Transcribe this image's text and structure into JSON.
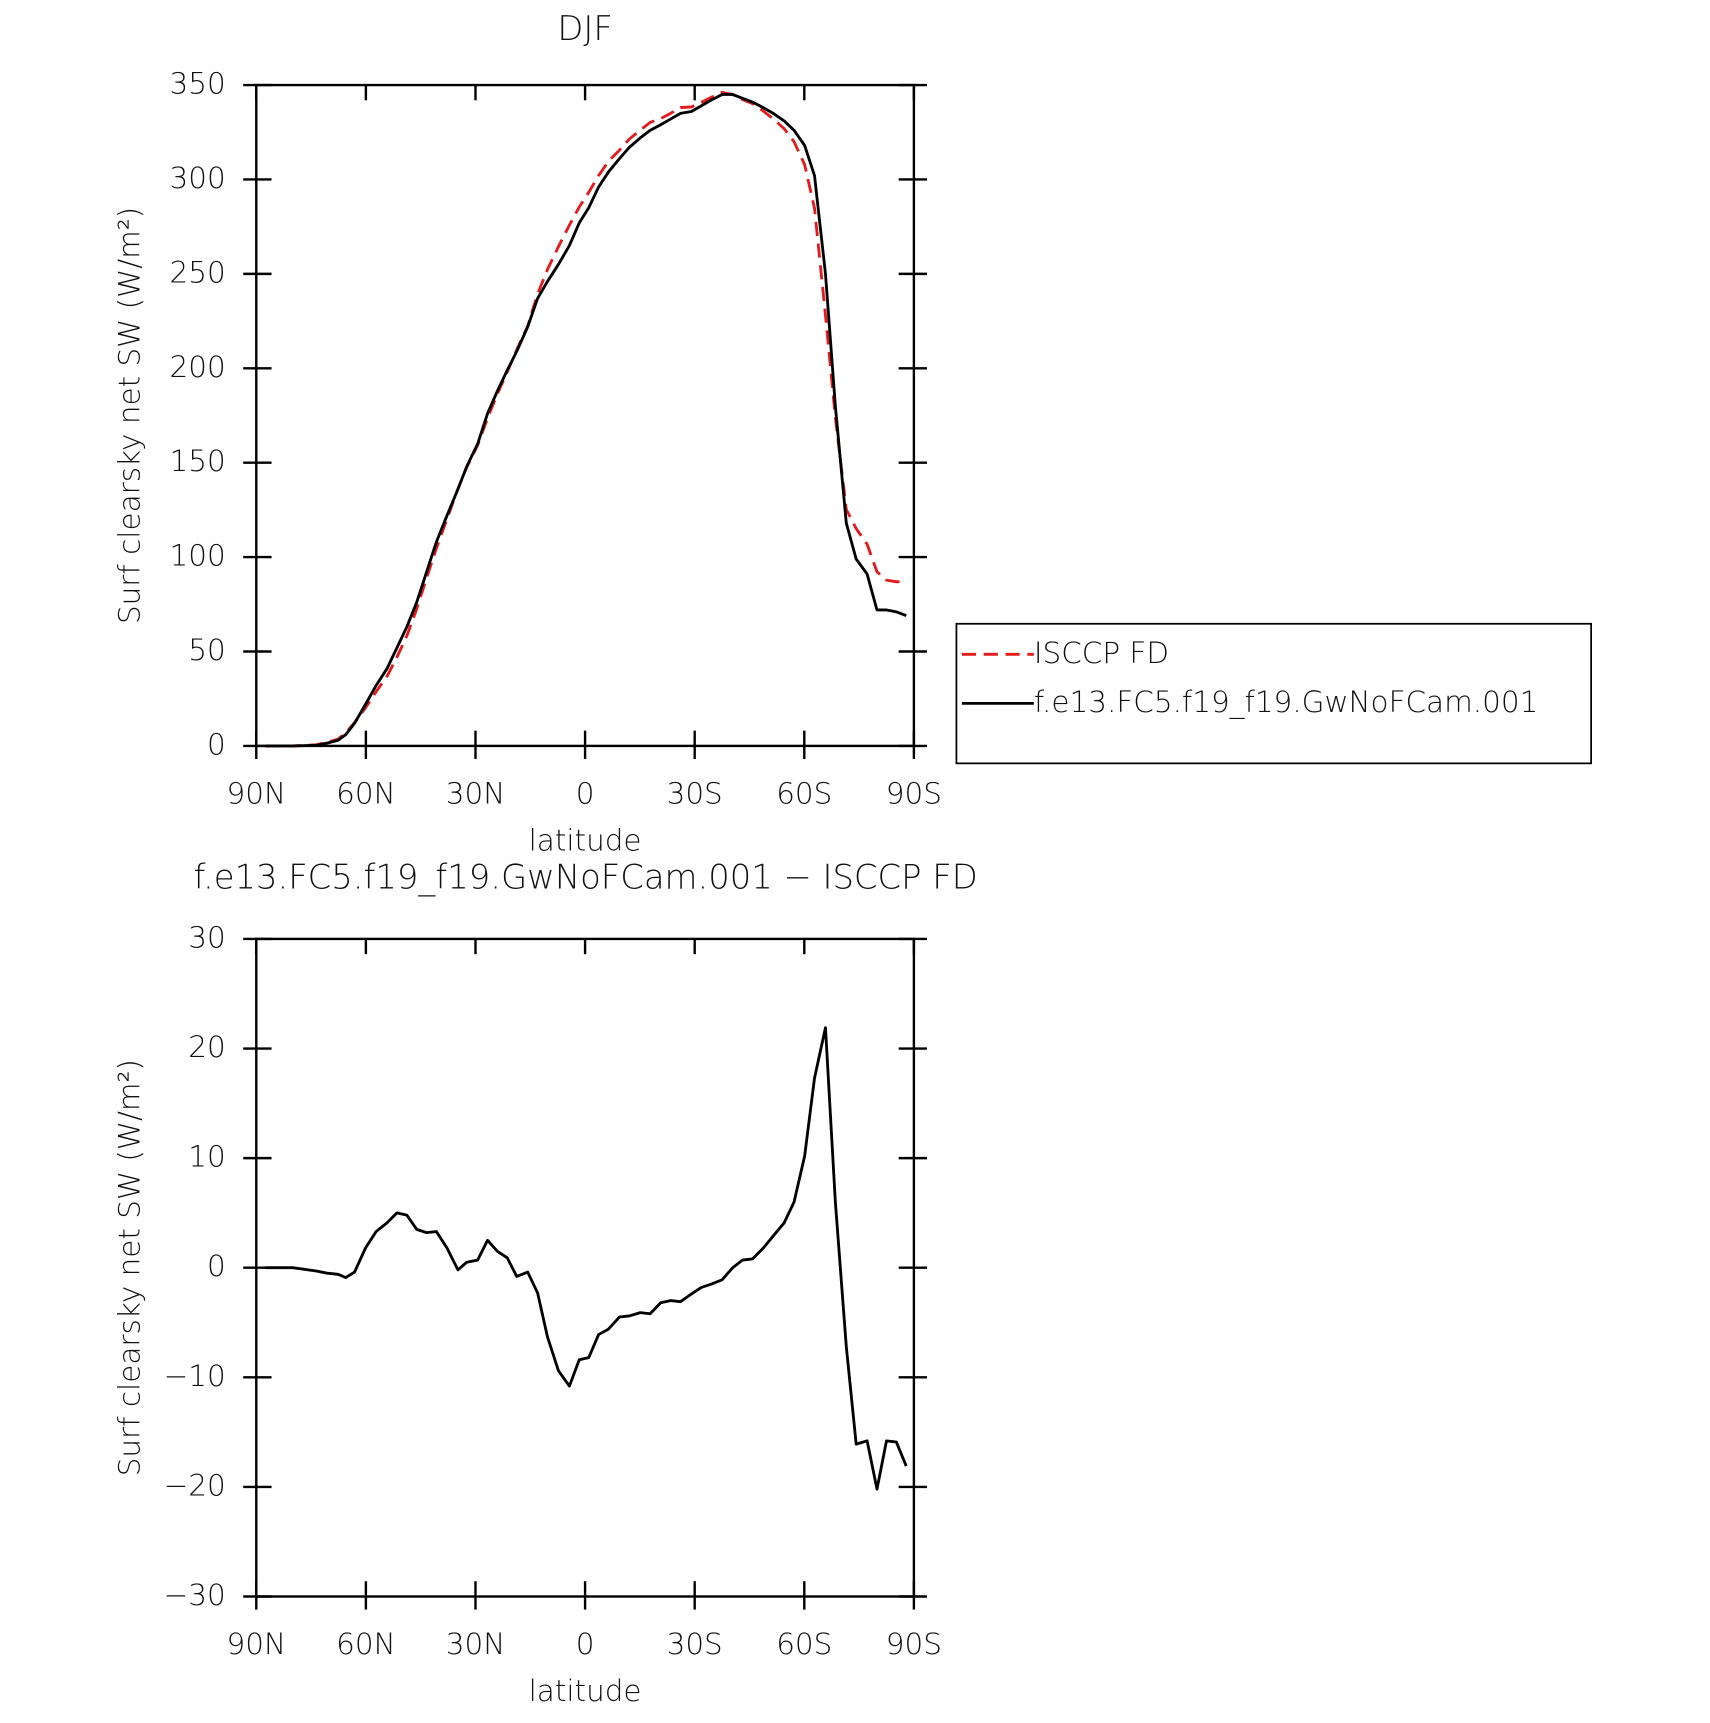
{
  "chart_data": [
    {
      "type": "line",
      "title": "DJF",
      "xlabel": "latitude",
      "ylabel": "Surf clearsky net SW (W/m²)",
      "x": [
        87.6,
        80,
        73.6,
        70.6,
        67.6,
        65.5,
        63.1,
        60.1,
        57.2,
        54.2,
        51.5,
        48.8,
        46.1,
        43.4,
        40.7,
        37.8,
        34.8,
        32.4,
        29.4,
        26.7,
        24,
        21.3,
        18.7,
        15.7,
        13,
        10.3,
        7.3,
        4.3,
        1.6,
        -1,
        -3.7,
        -6.4,
        -9.4,
        -12.1,
        -15.1,
        -17.8,
        -20.7,
        -23.4,
        -26.1,
        -29.1,
        -31.8,
        -34.5,
        -37.5,
        -40.4,
        -43.1,
        -45.8,
        -48.8,
        -51.5,
        -54.5,
        -57.2,
        -60.1,
        -62.8,
        -65.8,
        -68.5,
        -71.5,
        -74.2,
        -77.2,
        -79.9,
        -82.5,
        -85.2,
        -87.9
      ],
      "series": [
        {
          "name": "ISCCP FD",
          "color": "#e41a1c",
          "style": "dashed",
          "values": [
            0,
            0,
            0.6,
            2,
            3.6,
            6.9,
            12.4,
            20.2,
            28.7,
            36.9,
            47,
            58.2,
            72.5,
            88.8,
            104.7,
            120.2,
            136.2,
            147.5,
            159.3,
            173.5,
            186.5,
            198.1,
            209.8,
            222.4,
            239.3,
            252.3,
            264.4,
            275.8,
            285.4,
            293.2,
            302.1,
            309.6,
            315.5,
            321.4,
            326.1,
            330.2,
            332.2,
            335,
            338.1,
            338.4,
            340.8,
            343.5,
            346.1,
            345,
            342.3,
            340.2,
            336.2,
            332.1,
            326.9,
            320,
            307.8,
            284.7,
            228.1,
            174,
            125.2,
            115.1,
            106.8,
            92.2,
            87.8,
            86.9,
            87.1
          ]
        },
        {
          "name": "f.e13.FC5.f19_f19.GwNoFCam.001",
          "color": "#000000",
          "style": "solid",
          "values": [
            0,
            0,
            0.3,
            1.5,
            3,
            6,
            12,
            22,
            32,
            41,
            52,
            63,
            76,
            92,
            108,
            122,
            136,
            148,
            160,
            176,
            188,
            199,
            209,
            222,
            237,
            246,
            255,
            265,
            277,
            285,
            296,
            304,
            311,
            317,
            322,
            326,
            329,
            332,
            335,
            336,
            339,
            342,
            345,
            345,
            343,
            341,
            338,
            335,
            331,
            326,
            318,
            302,
            250,
            180,
            118,
            99,
            91,
            72,
            72,
            71,
            69
          ]
        }
      ],
      "xlim": [
        90,
        -90
      ],
      "xticks": [
        {
          "value": 90,
          "label": "90N"
        },
        {
          "value": 60,
          "label": "60N"
        },
        {
          "value": 30,
          "label": "30N"
        },
        0,
        {
          "value": -30,
          "label": "30S"
        },
        {
          "value": -60,
          "label": "60S"
        },
        {
          "value": -90,
          "label": "90S"
        }
      ],
      "ylim": [
        0,
        350
      ],
      "yticks": [
        0,
        50,
        100,
        150,
        200,
        250,
        300,
        350
      ],
      "legend": "right"
    },
    {
      "type": "line",
      "title": "f.e13.FC5.f19_f19.GwNoFCam.001 − ISCCP FD",
      "xlabel": "latitude",
      "ylabel": "Surf clearsky net SW (W/m²)",
      "x": [
        87.6,
        80,
        73.6,
        70.6,
        67.6,
        65.5,
        63.1,
        60.1,
        57.2,
        54.2,
        51.5,
        48.8,
        46.1,
        43.4,
        40.7,
        37.8,
        34.8,
        32.4,
        29.4,
        26.7,
        24,
        21.3,
        18.7,
        15.7,
        13,
        10.3,
        7.3,
        4.3,
        1.6,
        -1,
        -3.7,
        -6.4,
        -9.4,
        -12.1,
        -15.1,
        -17.8,
        -20.7,
        -23.4,
        -26.1,
        -29.1,
        -31.8,
        -34.5,
        -37.5,
        -40.4,
        -43.1,
        -45.8,
        -48.8,
        -51.5,
        -54.5,
        -57.2,
        -60.1,
        -62.8,
        -65.8,
        -68.5,
        -71.5,
        -74.2,
        -77.2,
        -79.9,
        -82.5,
        -85.2,
        -87.9
      ],
      "series": [
        {
          "color": "#000000",
          "style": "solid",
          "values": [
            0,
            0,
            -0.3,
            -0.5,
            -0.6,
            -0.9,
            -0.4,
            1.8,
            3.3,
            4.1,
            5,
            4.8,
            3.5,
            3.2,
            3.3,
            1.8,
            -0.2,
            0.5,
            0.7,
            2.5,
            1.5,
            0.9,
            -0.8,
            -0.4,
            -2.3,
            -6.3,
            -9.4,
            -10.8,
            -8.4,
            -8.2,
            -6.1,
            -5.6,
            -4.5,
            -4.4,
            -4.1,
            -4.2,
            -3.2,
            -3,
            -3.1,
            -2.4,
            -1.8,
            -1.5,
            -1.1,
            0,
            0.7,
            0.8,
            1.8,
            2.9,
            4.1,
            6,
            10.2,
            17.3,
            21.9,
            6,
            -7.2,
            -16.1,
            -15.8,
            -20.2,
            -15.8,
            -15.9,
            -18.1
          ]
        }
      ],
      "xlim": [
        90,
        -90
      ],
      "xticks": [
        {
          "value": 90,
          "label": "90N"
        },
        {
          "value": 60,
          "label": "60N"
        },
        {
          "value": 30,
          "label": "30N"
        },
        0,
        {
          "value": -30,
          "label": "30S"
        },
        {
          "value": -60,
          "label": "60S"
        },
        {
          "value": -90,
          "label": "90S"
        }
      ],
      "ylim": [
        -30,
        30
      ],
      "yticks": [
        {
          "value": -30,
          "label": "−30"
        },
        {
          "value": -20,
          "label": "−20"
        },
        {
          "value": -10,
          "label": "−10"
        },
        0,
        10,
        20,
        30
      ]
    }
  ]
}
